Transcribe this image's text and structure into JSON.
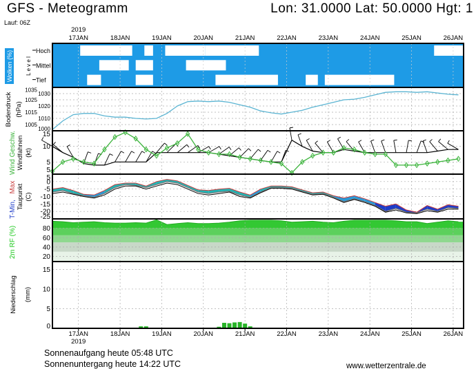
{
  "header": {
    "title": "GFS - Meteogramm",
    "coords": "Lon: 31.0000 Lat: 50.0000 Hgt: 1",
    "run": "Lauf: 06Z",
    "year_top": "2019",
    "year_bottom": "2019"
  },
  "footer": {
    "sunrise": "Sonnenaufgang heute 05:48 UTC",
    "sunset": "Sonnenuntergang heute 14:22 UTC",
    "site": "www.wetterzentrale.de"
  },
  "colors": {
    "cloud": "#1e9be6",
    "pressure": "#5ab4d2",
    "wind": "#3cb43c",
    "barb": "#000000",
    "tmin": "#1e3cc8",
    "tmax": "#c83c3c",
    "dew": "#000000",
    "rh": "#1ec81e",
    "precip": "#28b428"
  },
  "chart_data": [
    {
      "type": "area",
      "title": "Wolken (%)",
      "ylabel_parts": [
        "Wolken (%)",
        "L e v e l"
      ],
      "levels": [
        "Hoch",
        "Mittel",
        "Tief"
      ],
      "xlabel_ticks": [
        "17JAN",
        "18JAN",
        "19JAN",
        "20JAN",
        "21JAN",
        "22JAN",
        "23JAN",
        "24JAN",
        "25JAN",
        "26JAN"
      ],
      "x_unit": "hours since 17JAN 00Z",
      "xlim": [
        -15,
        222
      ],
      "clear_periods": {
        "Hoch": [
          [
            1,
            31
          ],
          [
            38,
            43
          ],
          [
            50,
            73
          ],
          [
            73,
            104
          ],
          [
            205,
            222
          ]
        ],
        "Mittel": [
          [
            12,
            29
          ],
          [
            33,
            43
          ],
          [
            62,
            85
          ]
        ],
        "Tief": [
          [
            5,
            13
          ],
          [
            33,
            43
          ],
          [
            79,
            115
          ],
          [
            131,
            138
          ],
          [
            142,
            182
          ]
        ]
      }
    },
    {
      "type": "line",
      "ylabel": "Bodendruck",
      "yunit": "(hPa)",
      "ylim": [
        1000,
        1035
      ],
      "yticks": [
        "1000",
        "1005",
        "1010",
        "1015",
        "1020",
        "1025",
        "1030",
        "1035"
      ],
      "t_start": -15,
      "t_step": 6,
      "values": [
        1001,
        1008,
        1013,
        1014,
        1014,
        1012,
        1011,
        1011,
        1010,
        1009.5,
        1010,
        1014,
        1020,
        1023.5,
        1024,
        1023.5,
        1024,
        1023,
        1021,
        1019,
        1016,
        1014.5,
        1013.5,
        1015,
        1016.5,
        1019,
        1021,
        1023,
        1025,
        1025.5,
        1027,
        1029,
        1031,
        1031.5,
        1031.5,
        1031,
        1031.5,
        1030.5,
        1029.5,
        1029
      ]
    },
    {
      "type": "line",
      "ylabel_wind": "Wind Geschw.",
      "ylabel_barbs": "Windfahnen",
      "yunit": "(kt)",
      "ylim": [
        1.1,
        15
      ],
      "yticks": [
        "5",
        "10",
        "15"
      ],
      "bottom_label": "5",
      "t_start": -15,
      "t_step": 6,
      "speed": [
        2,
        5,
        6,
        5,
        4.5,
        9,
        13,
        14.5,
        12.5,
        9,
        7,
        9.5,
        11,
        14,
        9,
        8,
        7.5,
        7.5,
        6.5,
        6,
        5.5,
        5,
        4.5,
        1.5,
        5,
        7,
        8,
        8,
        9.5,
        9,
        8,
        7.5,
        7.5,
        4,
        4,
        4,
        4.5,
        5,
        5.5,
        6
      ],
      "barb_level": [
        10,
        8,
        6.5,
        4.5,
        4,
        4,
        5,
        5,
        5,
        5,
        8,
        8,
        8,
        8,
        8,
        8,
        7.5,
        7,
        6.5,
        6,
        5.5,
        5,
        5,
        12,
        10,
        8.5,
        8,
        8,
        9,
        8.5,
        8,
        8,
        8,
        8,
        8,
        8,
        8,
        8.5,
        9,
        9
      ],
      "barb_dir_deg": [
        300,
        310,
        330,
        20,
        20,
        25,
        30,
        30,
        30,
        30,
        40,
        45,
        50,
        55,
        60,
        60,
        55,
        50,
        45,
        40,
        35,
        30,
        20,
        350,
        340,
        330,
        320,
        330,
        330,
        320,
        330,
        340,
        340,
        350,
        10,
        20,
        340,
        320,
        310,
        300
      ]
    },
    {
      "type": "line",
      "ylabel": "T-Min, Max",
      "ylabel_tmin": "T-Min,",
      "ylabel_tmax": "Max",
      "ylabel_dew": "Taupunkt",
      "yunit": "(C)",
      "ylim": [
        -25,
        5
      ],
      "yticks": [
        "-25",
        "-20",
        "-15",
        "-10",
        "-5",
        "0",
        "5"
      ],
      "t_start": -15,
      "t_step": 6,
      "tmin": [
        -7,
        -6,
        -8,
        -9.5,
        -10.5,
        -8,
        -4,
        -2,
        -2.5,
        -4,
        -2,
        0,
        -1,
        -4,
        -7,
        -8,
        -7,
        -6.5,
        -9,
        -10.5,
        -7,
        -4,
        -4,
        -4.5,
        -6.5,
        -8.5,
        -8,
        -10.5,
        -13.5,
        -11.5,
        -13.5,
        -16,
        -20,
        -18,
        -20.5,
        -21,
        -18.5,
        -20,
        -17.5,
        -18
      ],
      "tmax": [
        -5,
        -4,
        -6,
        -8.5,
        -9,
        -6,
        -2,
        -1,
        -1,
        -3,
        0,
        1.5,
        0.5,
        -2.5,
        -5.5,
        -6,
        -5,
        -4.5,
        -7,
        -9,
        -5,
        -3,
        -3,
        -3.5,
        -5.5,
        -7.5,
        -7,
        -9.5,
        -11,
        -9.5,
        -11.5,
        -14,
        -16.5,
        -15,
        -19,
        -20.5,
        -16,
        -18.5,
        -15.5,
        -16.5
      ],
      "dewpoint": [
        -8,
        -7,
        -8.5,
        -10,
        -11,
        -9,
        -5,
        -3,
        -3,
        -5,
        -3,
        -1,
        -2,
        -5,
        -8,
        -9,
        -8,
        -7,
        -10,
        -11,
        -7.5,
        -4.5,
        -4.5,
        -5,
        -7,
        -9,
        -8.5,
        -11,
        -14,
        -12,
        -14,
        -16.5,
        -20.5,
        -19,
        -21,
        -21.5,
        -19.5,
        -20.5,
        -18.5,
        -18.5
      ]
    },
    {
      "type": "area",
      "ylabel": "2m RF (%)",
      "ylim": [
        9,
        100
      ],
      "yticks": [
        "20",
        "40",
        "60",
        "80"
      ],
      "t_start": -15,
      "t_step": 6,
      "values": [
        95,
        94,
        92,
        93,
        94,
        92,
        91,
        91,
        92,
        91,
        98,
        88,
        90,
        92,
        90,
        90,
        91,
        93,
        96,
        97,
        97,
        97,
        96,
        93,
        94,
        95,
        93,
        92,
        95,
        97,
        97,
        97,
        97,
        96,
        94,
        94,
        90,
        93,
        96,
        94
      ]
    },
    {
      "type": "bar",
      "ylabel": "Niederschlag",
      "yunit": "(mm)",
      "ylim": [
        0,
        17
      ],
      "yticks": [
        "0",
        "5",
        "10",
        "15"
      ],
      "bars": [
        [
          36,
          0.5
        ],
        [
          39,
          0.5
        ],
        [
          81,
          0.4
        ],
        [
          84,
          1.4
        ],
        [
          87,
          1.3
        ],
        [
          90,
          1.5
        ],
        [
          93,
          1.6
        ],
        [
          96,
          1.2
        ],
        [
          99,
          0.5
        ]
      ]
    }
  ]
}
